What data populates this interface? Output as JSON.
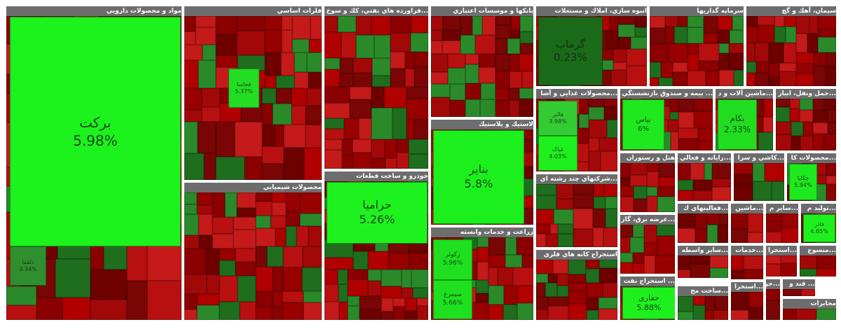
{
  "sectors": [
    {
      "title": "مواد و محصولات دارويي",
      "tiles": [
        {
          "label": "برکت",
          "change": "5.98%"
        },
        {
          "label": "دلقما",
          "change": "3.34%"
        }
      ]
    },
    {
      "title": "فلزات اساسي",
      "tiles": [
        {
          "label": "فخاسا",
          "change": "5.37%"
        }
      ]
    },
    {
      "title": "...فراورده هاي نفتي، كك و سوخ",
      "tiles": []
    },
    {
      "title": "بانكها و موسسات اعتباري",
      "tiles": []
    },
    {
      "title": "انبوه سازي، املاك و مستغلات",
      "tiles": [
        {
          "label": "گرماب",
          "change": "0.23%"
        }
      ]
    },
    {
      "title": "سرمايه گذاريها",
      "tiles": []
    },
    {
      "title": "سيمان، آهك و گچ",
      "tiles": []
    },
    {
      "title": "محصولات شيميايي",
      "tiles": []
    },
    {
      "title": "خودرو و ساخت قطعات",
      "tiles": [
        {
          "label": "حراميا",
          "change": "5.26%"
        }
      ]
    },
    {
      "title": "لاستيك و پلاستيك",
      "tiles": [
        {
          "label": "بنایر",
          "change": "5.8%"
        }
      ]
    },
    {
      "title": "زراعت و خدمات وابسته",
      "tiles": [
        {
          "label": "زکوثر",
          "change": "5.96%"
        },
        {
          "label": "سیمرغ",
          "change": "5.66%"
        }
      ]
    },
    {
      "title": "...محصولات غذايي و آشا",
      "tiles": [
        {
          "label": "فالبر",
          "change": "3.98%"
        },
        {
          "label": "غپاک",
          "change": "4.03%"
        }
      ]
    },
    {
      "title": "... بيمه و صندوق بازنشستگي",
      "tiles": [
        {
          "label": "بپاس",
          "change": "6%"
        }
      ]
    },
    {
      "title": "...ماشين آلات و د",
      "tiles": [
        {
          "label": "بکام",
          "change": "2.33%"
        }
      ]
    },
    {
      "title": "...حمل ونقل، انبار",
      "tiles": []
    },
    {
      "title": "...شركتهاي چند رشته اي",
      "tiles": []
    },
    {
      "title": "استخراج كانه هاي فلزي",
      "tiles": []
    },
    {
      "title": "هتل و رستوران",
      "tiles": []
    },
    {
      "title": "...رايانه و فعالي",
      "tiles": []
    },
    {
      "title": "...كاشي و سرا",
      "tiles": []
    },
    {
      "title": "...محصولات كا",
      "tiles": [
        {
          "label": "چکاپا",
          "change": "5.94%"
        }
      ]
    },
    {
      "title": "...عرضه برق، گاز",
      "tiles": []
    },
    {
      "title": "... استخراج نفت",
      "tiles": [
        {
          "label": "حفاری",
          "change": "5.88%"
        }
      ]
    },
    {
      "title": "...فعاليتهاي ك",
      "tiles": []
    },
    {
      "title": "...ماشين",
      "tiles": []
    },
    {
      "title": "...ساير م",
      "tiles": []
    },
    {
      "title": "...توليد م",
      "tiles": [
        {
          "label": "فاذر",
          "change": "4.85%"
        }
      ]
    },
    {
      "title": "...ساير واسطه",
      "tiles": []
    },
    {
      "title": "...خدمات",
      "tiles": []
    },
    {
      "title": "...استخرا",
      "tiles": []
    },
    {
      "title": "...منسوج",
      "tiles": []
    },
    {
      "title": "...ساخت مح",
      "tiles": []
    },
    {
      "title": "...استخرا",
      "tiles": []
    },
    {
      "title": "...حر",
      "tiles": []
    },
    {
      "title": "... قند و",
      "tiles": []
    },
    {
      "title": "محابرات",
      "tiles": []
    }
  ]
}
